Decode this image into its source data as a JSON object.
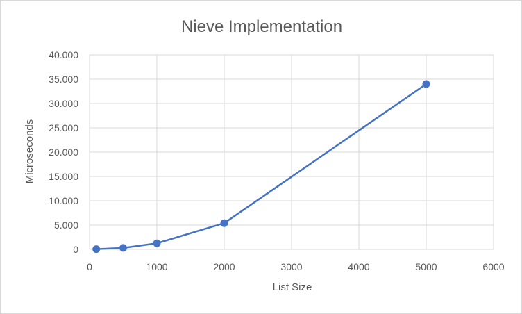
{
  "chart_data": {
    "type": "scatter",
    "title": "Nieve Implementation",
    "xlabel": "List Size",
    "ylabel": "Microseconds",
    "xlim": [
      0,
      6000
    ],
    "ylim": [
      0,
      40000
    ],
    "x_ticks": [
      0,
      1000,
      2000,
      3000,
      4000,
      5000,
      6000
    ],
    "x_tick_labels": [
      "0",
      "1000",
      "2000",
      "3000",
      "4000",
      "5000",
      "6000"
    ],
    "y_ticks": [
      0,
      5000,
      10000,
      15000,
      20000,
      25000,
      30000,
      35000,
      40000
    ],
    "y_tick_labels": [
      "0",
      "5.000",
      "10.000",
      "15.000",
      "20.000",
      "25.000",
      "30.000",
      "35.000",
      "40.000"
    ],
    "grid": true,
    "legend": "none",
    "series": [
      {
        "color": "#4472c4",
        "x": [
          100,
          500,
          1000,
          2000,
          5000
        ],
        "y": [
          60,
          300,
          1250,
          5400,
          34000
        ]
      }
    ]
  }
}
